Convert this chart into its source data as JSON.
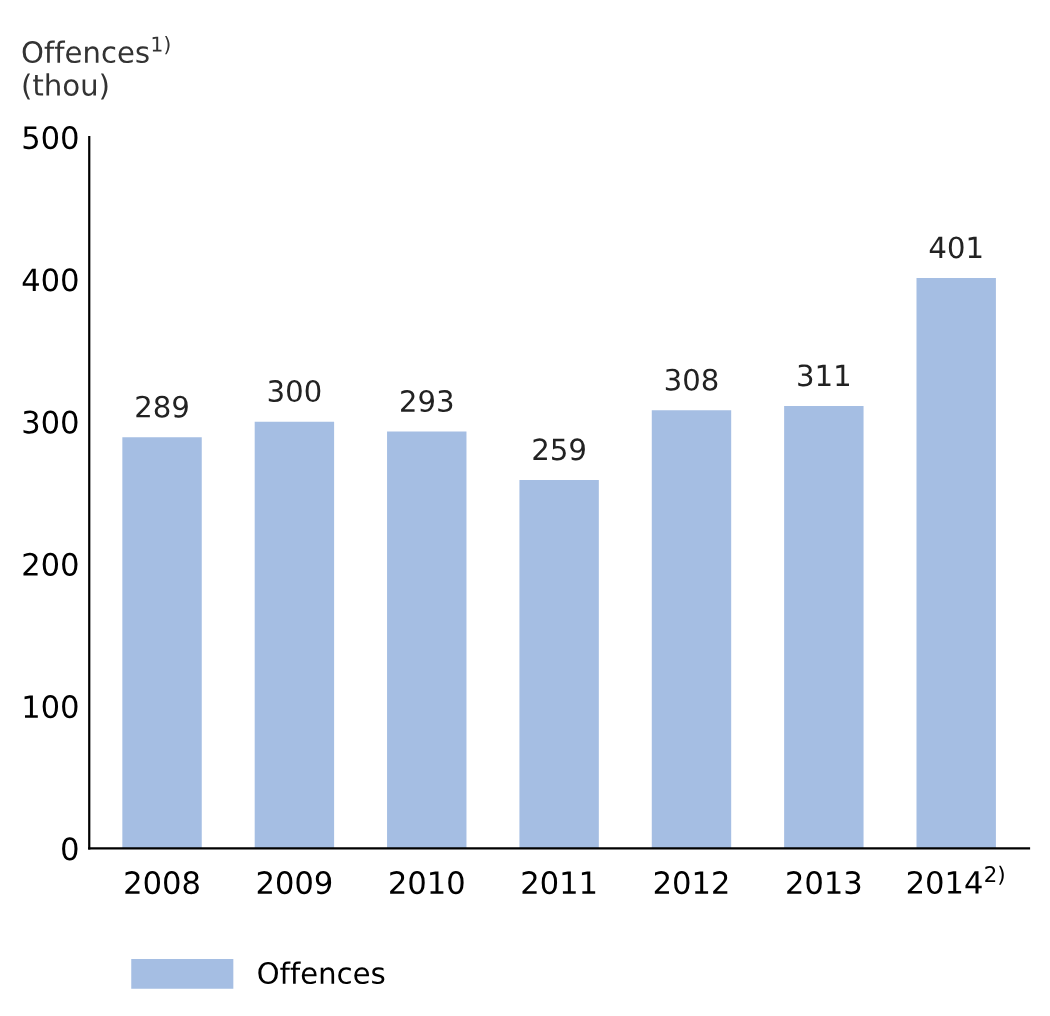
{
  "chart_data": {
    "type": "bar",
    "ylabel": "Offences$^{1)}$\n(thou)",
    "categories": [
      "2008",
      "2009",
      "2010",
      "2011",
      "2012",
      "2013",
      "2014$^{2)}$"
    ],
    "series": [
      {
        "name": "Offences",
        "color": "#a5bee3",
        "values": [
          289,
          300,
          293,
          259,
          308,
          311,
          401
        ]
      }
    ],
    "ylim": [
      0,
      500
    ],
    "yticks": [
      0,
      100,
      200,
      300,
      400,
      500
    ],
    "grid": false,
    "legend": "bottom left",
    "data_labels": true
  }
}
